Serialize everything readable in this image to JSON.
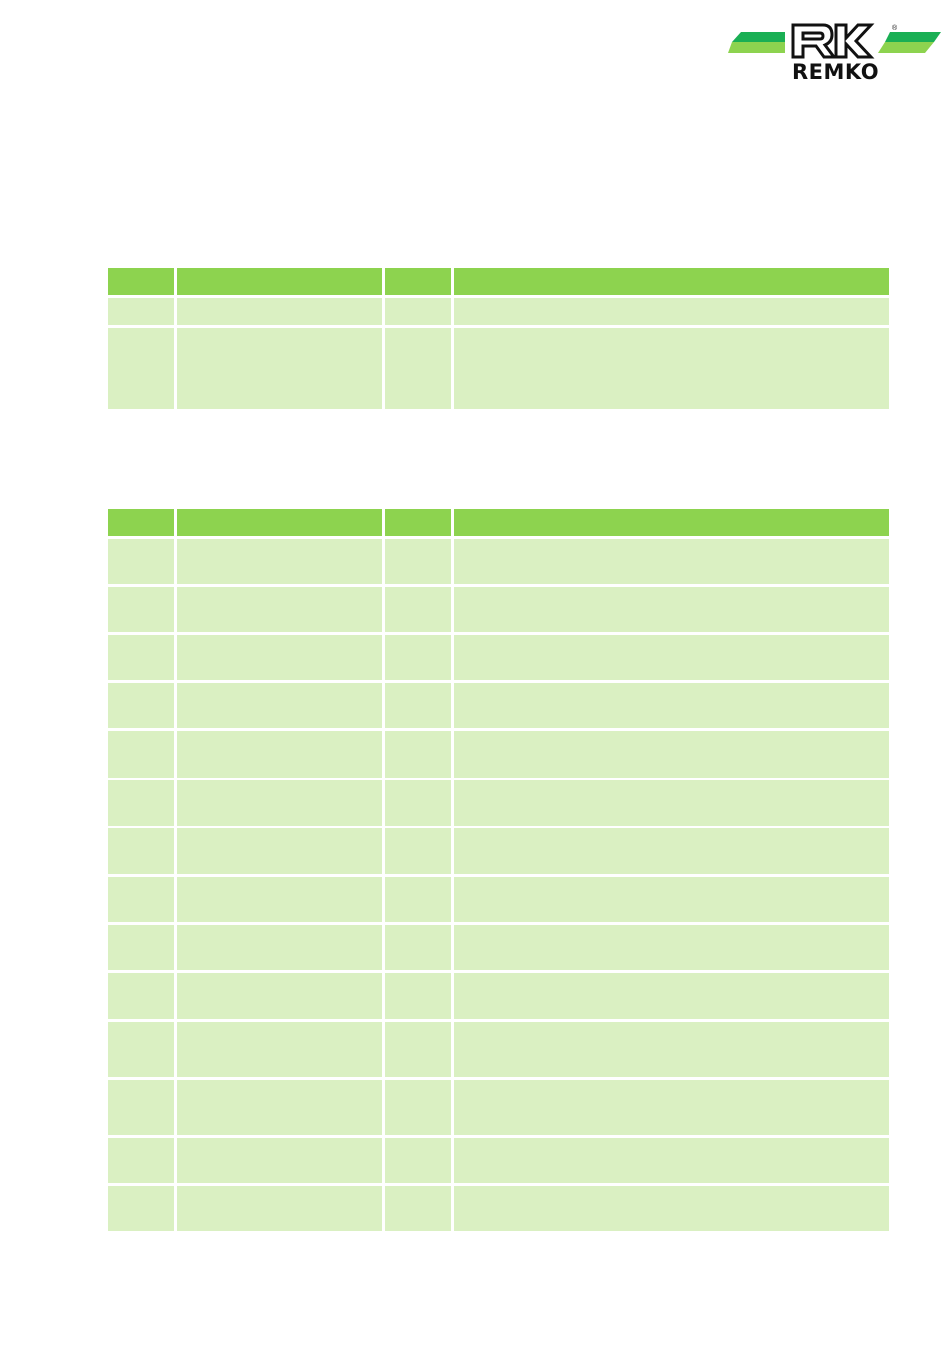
{
  "header": {
    "logo": {
      "text": "REMKO",
      "colors": {
        "stripe_dark": "#1aaf54",
        "stripe_light": "#8dd34f",
        "mark": "#111111"
      }
    }
  },
  "colors": {
    "table_header": "#8dd34f",
    "table_row": "#daf0c2"
  },
  "tables": [
    {
      "header": [
        "",
        "",
        "",
        ""
      ],
      "rows": [
        [
          "",
          "",
          "",
          ""
        ],
        [
          "",
          "",
          "",
          ""
        ]
      ]
    },
    {
      "header": [
        "",
        "",
        "",
        ""
      ],
      "rows": [
        [
          "",
          "",
          "",
          ""
        ],
        [
          "",
          "",
          "",
          ""
        ],
        [
          "",
          "",
          "",
          ""
        ],
        [
          "",
          "",
          "",
          ""
        ],
        [
          "",
          "",
          "",
          ""
        ],
        [
          "",
          "",
          "",
          ""
        ],
        [
          "",
          "",
          "",
          ""
        ],
        [
          "",
          "",
          "",
          ""
        ],
        [
          "",
          "",
          "",
          ""
        ],
        [
          "",
          "",
          "",
          ""
        ],
        [
          "",
          "",
          "",
          ""
        ],
        [
          "",
          "",
          "",
          ""
        ],
        [
          "",
          "",
          "",
          ""
        ],
        [
          "",
          "",
          "",
          ""
        ]
      ]
    }
  ]
}
